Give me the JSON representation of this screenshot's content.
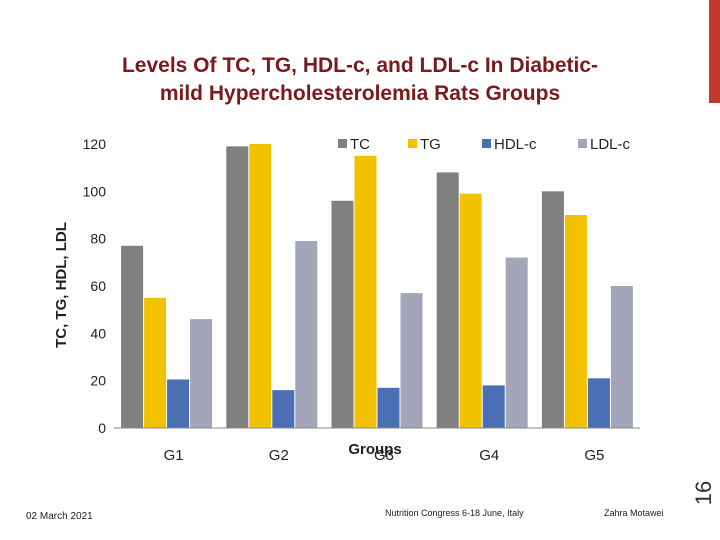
{
  "slide": {
    "title_line1": "Levels Of TC, TG, HDL-c, and LDL-c In Diabetic-",
    "title_line2": "mild Hypercholesterolemia Rats Groups",
    "page_number": "16",
    "date": "02 March 2021",
    "conference": "Nutrition Congress  6-18 June, Italy",
    "author": "Zahra  Motawei",
    "accent_color": "#c0392b",
    "title_color": "#7a1a1a"
  },
  "chart_data": {
    "type": "bar",
    "title": "",
    "xlabel": "Groups",
    "ylabel": "TC, TG, HDL, LDL",
    "categories": [
      "G1",
      "G2",
      "G3",
      "G4",
      "G5"
    ],
    "ylim": [
      0,
      120
    ],
    "yticks": [
      0,
      20,
      40,
      60,
      80,
      100,
      120
    ],
    "legend_position": "top-right",
    "series": [
      {
        "name": "TC",
        "color": "#808080",
        "values": [
          77,
          119,
          96,
          108,
          100
        ]
      },
      {
        "name": "TG",
        "color": "#f2c200",
        "values": [
          55,
          120,
          115,
          99,
          90
        ]
      },
      {
        "name": "HDL-c",
        "color": "#4a6fb5",
        "values": [
          20.5,
          16,
          17,
          18,
          21
        ]
      },
      {
        "name": "LDL-c",
        "color": "#a3a6b8",
        "values": [
          46,
          79,
          57,
          72,
          60
        ]
      }
    ]
  }
}
